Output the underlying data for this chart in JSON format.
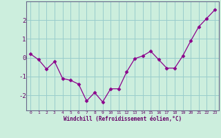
{
  "x": [
    0,
    1,
    2,
    3,
    4,
    5,
    6,
    7,
    8,
    9,
    10,
    11,
    12,
    13,
    14,
    15,
    16,
    17,
    18,
    19,
    20,
    21,
    22,
    23
  ],
  "y": [
    0.2,
    -0.1,
    -0.6,
    -0.2,
    -1.1,
    -1.2,
    -1.4,
    -2.3,
    -1.85,
    -2.35,
    -1.65,
    -1.65,
    -0.75,
    -0.05,
    0.1,
    0.35,
    -0.1,
    -0.55,
    -0.55,
    0.1,
    0.9,
    1.65,
    2.1,
    2.55
  ],
  "line_color": "#8b008b",
  "marker": "D",
  "marker_size": 2.5,
  "bg_color": "#cceedd",
  "grid_color": "#99cccc",
  "xlabel": "Windchill (Refroidissement éolien,°C)",
  "xlabel_color": "#660066",
  "tick_color": "#660066",
  "spine_color": "#666688",
  "ylim": [
    -2.8,
    3.0
  ],
  "yticks": [
    -2,
    -1,
    0,
    1,
    2
  ],
  "xticks": [
    0,
    1,
    2,
    3,
    4,
    5,
    6,
    7,
    8,
    9,
    10,
    11,
    12,
    13,
    14,
    15,
    16,
    17,
    18,
    19,
    20,
    21,
    22,
    23
  ]
}
